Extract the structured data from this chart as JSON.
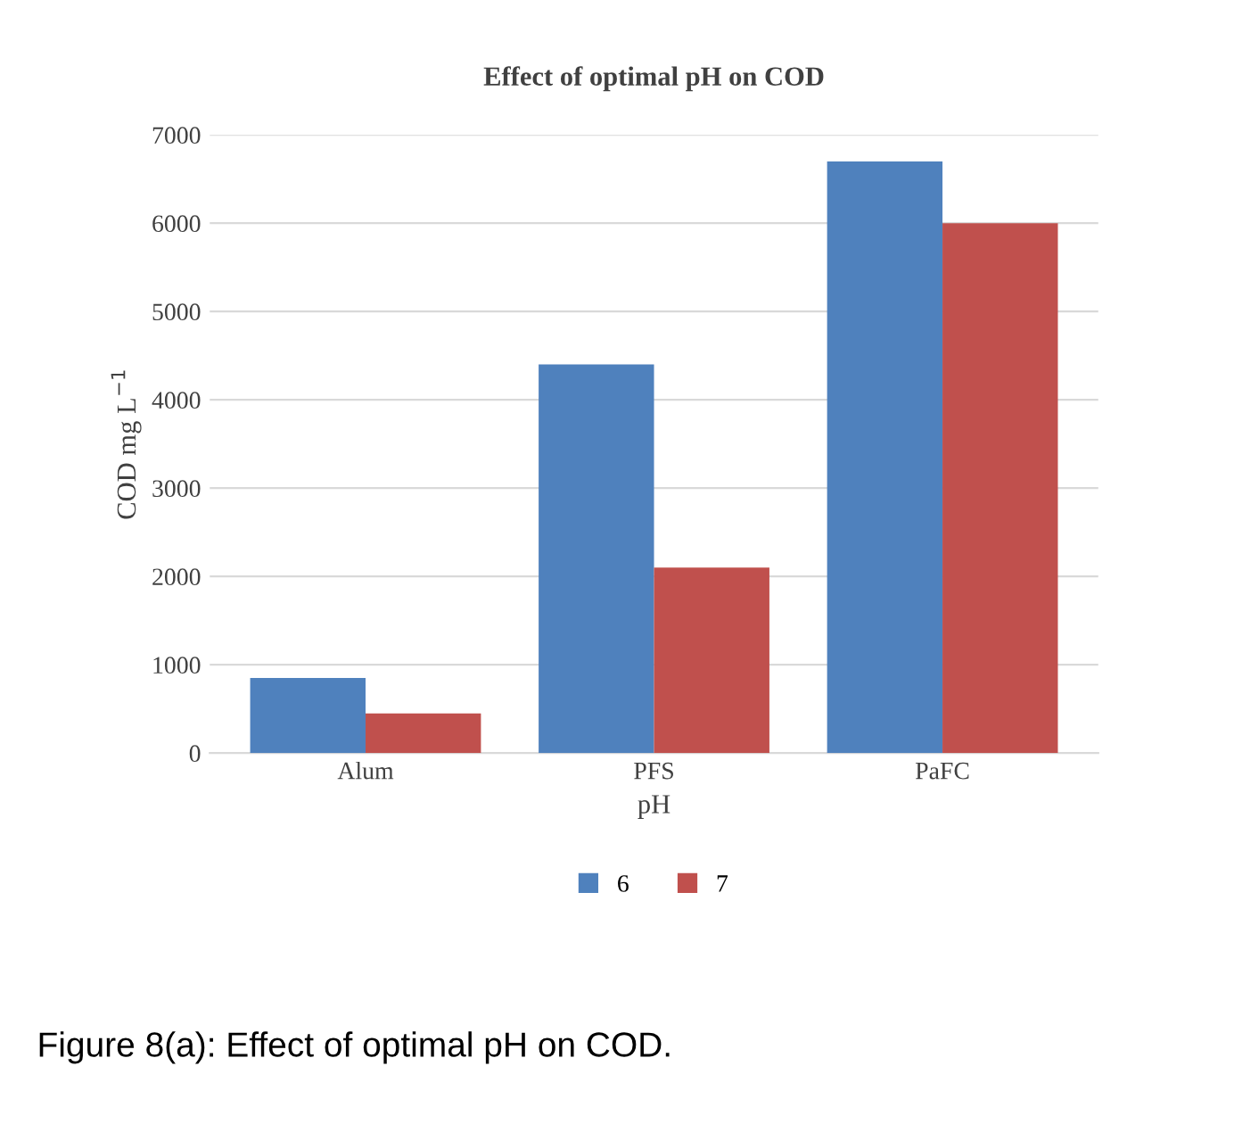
{
  "chart_data": {
    "type": "bar",
    "title": "Effect of optimal pH on COD",
    "xlabel": "pH",
    "ylabel": "COD mg L$^{−1}$",
    "categories": [
      "Alum",
      "PFS",
      "PaFC"
    ],
    "series": [
      {
        "name": "6",
        "color": "#4f81bd",
        "values": [
          850,
          4400,
          6700
        ]
      },
      {
        "name": "7",
        "color": "#c0504d",
        "values": [
          450,
          2100,
          6000
        ]
      }
    ],
    "ylim": [
      0,
      7000
    ],
    "yticks": [
      0,
      1000,
      2000,
      3000,
      4000,
      5000,
      6000,
      7000
    ],
    "grid": "y",
    "legend": "bottom",
    "annotations": [
      "Figure 8(a): Effect of optimal pH on COD."
    ]
  }
}
